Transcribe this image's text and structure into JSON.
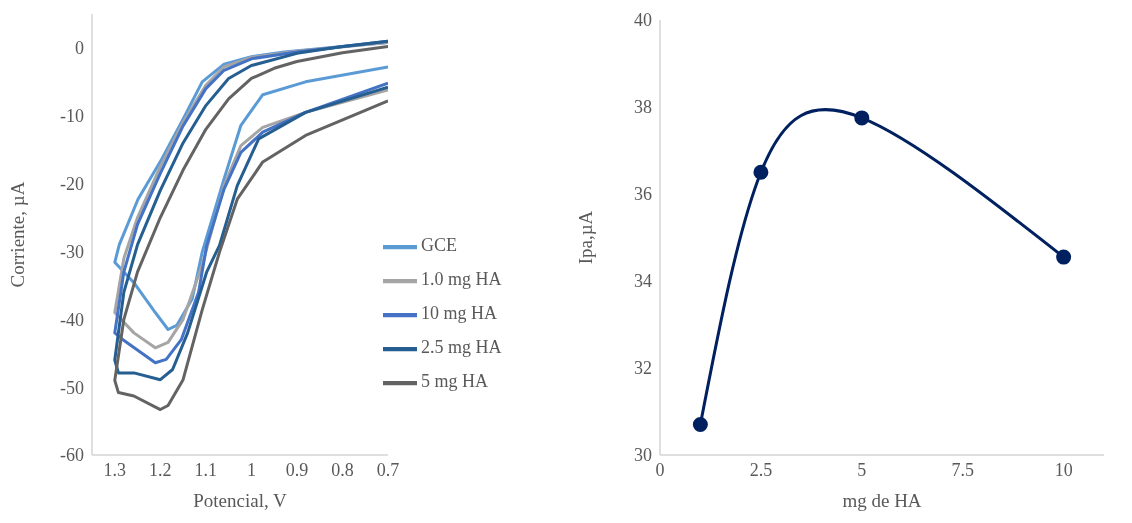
{
  "chart_data": [
    {
      "type": "line",
      "xlabel": "Potencial, V",
      "ylabel": "Corriente, µA",
      "xlim": [
        1.35,
        0.7
      ],
      "xticks": [
        1.3,
        1.2,
        1.1,
        1,
        0.9,
        0.8,
        0.7
      ],
      "ylim": [
        -60,
        5
      ],
      "yticks": [
        -60,
        -50,
        -40,
        -30,
        -20,
        -10,
        0
      ],
      "grid": false,
      "legend": "right",
      "marker": "none",
      "line_style": "solid",
      "series": [
        {
          "name": "GCE",
          "color": "#5b9bd5",
          "x": [
            0.7,
            0.8,
            0.928,
            1.0,
            1.06,
            1.108,
            1.15,
            1.197,
            1.249,
            1.29,
            1.3,
            1.258,
            1.211,
            1.183,
            1.164,
            1.13,
            1.108,
            1.06,
            1.023,
            0.975,
            0.881,
            0.7
          ],
          "values": [
            0.8,
            0.2,
            -0.6,
            -1.3,
            -2.4,
            -5,
            -10.5,
            -16.4,
            -22.3,
            -29,
            -31.6,
            -34.6,
            -39,
            -41.5,
            -40.9,
            -37,
            -30.1,
            -19.3,
            -11.4,
            -6.9,
            -5,
            -2.8
          ]
        },
        {
          "name": "1.0 mg HA",
          "color": "#a5a5a5",
          "x": [
            0.7,
            0.9,
            1.0,
            1.06,
            1.1,
            1.15,
            1.2,
            1.25,
            1.28,
            1.3,
            1.258,
            1.211,
            1.183,
            1.15,
            1.108,
            1.06,
            1.023,
            0.975,
            0.881,
            0.7
          ],
          "values": [
            0.8,
            -0.5,
            -1.4,
            -2.8,
            -5.5,
            -11,
            -17.5,
            -25,
            -31,
            -39,
            -42,
            -44.2,
            -43.4,
            -40,
            -32,
            -20.3,
            -14.4,
            -11.7,
            -9.5,
            -6.2
          ]
        },
        {
          "name": "10 mg HA",
          "color": "#4472c4",
          "x": [
            0.7,
            0.9,
            1.0,
            1.06,
            1.1,
            1.15,
            1.2,
            1.25,
            1.28,
            1.3,
            1.282,
            1.211,
            1.187,
            1.154,
            1.116,
            1.098,
            1.06,
            1.023,
            0.975,
            0.881,
            0.7
          ],
          "values": [
            1,
            -0.6,
            -1.6,
            -3.3,
            -6,
            -11.5,
            -18.5,
            -26,
            -33,
            -42,
            -43,
            -46.4,
            -45.9,
            -43,
            -36,
            -29.1,
            -20.8,
            -15.4,
            -12.4,
            -9.5,
            -5.2
          ]
        },
        {
          "name": "2.5 mg HA",
          "color": "#255e91",
          "x": [
            0.7,
            0.8,
            0.9,
            1.0,
            1.05,
            1.1,
            1.15,
            1.2,
            1.25,
            1.28,
            1.3,
            1.292,
            1.258,
            1.2,
            1.173,
            1.14,
            1.098,
            1.07,
            1.031,
            0.984,
            0.881,
            0.7
          ],
          "values": [
            1,
            0.2,
            -0.8,
            -2.6,
            -4.5,
            -8.5,
            -14,
            -21,
            -29,
            -36,
            -46,
            -47.9,
            -47.9,
            -48.9,
            -47.4,
            -42,
            -33,
            -29.1,
            -20.3,
            -13.4,
            -9.5,
            -5.8
          ]
        },
        {
          "name": "5 mg HA",
          "color": "#636363",
          "x": [
            0.7,
            0.8,
            0.9,
            0.95,
            1.0,
            1.05,
            1.1,
            1.15,
            1.2,
            1.25,
            1.28,
            1.3,
            1.292,
            1.258,
            1.2,
            1.183,
            1.15,
            1.108,
            1.07,
            1.031,
            0.975,
            0.881,
            0.7
          ],
          "values": [
            0.2,
            -0.7,
            -2,
            -3,
            -4.5,
            -7.5,
            -12,
            -18,
            -25,
            -33,
            -40,
            -49,
            -50.8,
            -51.3,
            -53.3,
            -52.7,
            -48.9,
            -38.6,
            -30.1,
            -22.3,
            -16.8,
            -12.9,
            -7.8
          ]
        }
      ]
    },
    {
      "type": "line",
      "xlabel": "mg de HA",
      "ylabel": "Ipa,µA",
      "xlim": [
        0,
        11
      ],
      "xticks": [
        0,
        2.5,
        5,
        7.5,
        10
      ],
      "ylim": [
        30,
        40
      ],
      "yticks": [
        30,
        32,
        34,
        36,
        38,
        40
      ],
      "grid": false,
      "legend": false,
      "marker": "circle",
      "line_style": "solid",
      "series": [
        {
          "color": "#002060",
          "x": [
            1,
            2.5,
            5,
            10
          ],
          "values": [
            30.7,
            36.5,
            37.75,
            34.55
          ]
        }
      ]
    }
  ]
}
